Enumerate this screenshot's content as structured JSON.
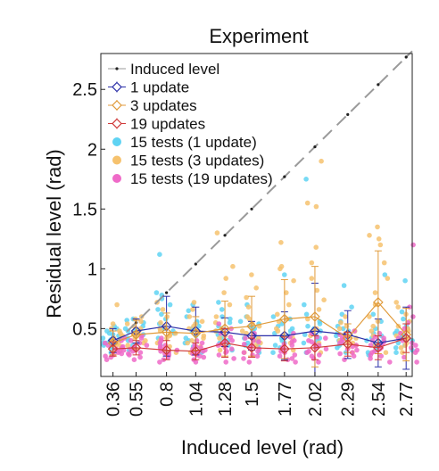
{
  "chart_data": {
    "type": "scatter",
    "title": "Experiment",
    "xlabel": "Induced level (rad)",
    "ylabel": "Residual level (rad)",
    "xlim": [
      0.26,
      2.82
    ],
    "ylim": [
      0.1,
      2.8
    ],
    "grid": false,
    "legend_position": "top-left",
    "x_tick_labels": [
      "0.36",
      "0.55",
      "0.8",
      "1.04",
      "1.28",
      "1.5",
      "1.77",
      "2.02",
      "2.29",
      "2.54",
      "2.77"
    ],
    "y_ticks": [
      0.5,
      1,
      1.5,
      2,
      2.5
    ],
    "y_tick_labels": [
      "0.5",
      "1",
      "1.5",
      "2",
      "2.5"
    ],
    "series": [
      {
        "name": "Induced level",
        "kind": "identity-line",
        "color": "#222222",
        "line_color": "#9a9a9a",
        "x": [
          0.36,
          0.55,
          0.8,
          1.04,
          1.28,
          1.5,
          1.77,
          2.02,
          2.29,
          2.54,
          2.77
        ],
        "y": [
          0.36,
          0.55,
          0.8,
          1.04,
          1.28,
          1.5,
          1.77,
          2.02,
          2.29,
          2.54,
          2.77
        ]
      },
      {
        "name": "1 update",
        "kind": "mean-errorbar",
        "color": "#2b2fa8",
        "x": [
          0.36,
          0.55,
          0.8,
          1.04,
          1.28,
          1.5,
          1.77,
          2.02,
          2.29,
          2.54,
          2.77
        ],
        "y": [
          0.4,
          0.48,
          0.52,
          0.48,
          0.47,
          0.44,
          0.44,
          0.48,
          0.45,
          0.38,
          0.42
        ],
        "err": [
          0.1,
          0.1,
          0.25,
          0.2,
          0.12,
          0.12,
          0.2,
          0.4,
          0.2,
          0.2,
          0.26
        ]
      },
      {
        "name": "3 updates",
        "kind": "mean-errorbar",
        "color": "#e09a3a",
        "x": [
          0.36,
          0.55,
          0.8,
          1.04,
          1.28,
          1.5,
          1.77,
          2.02,
          2.29,
          2.54,
          2.77
        ],
        "y": [
          0.38,
          0.45,
          0.47,
          0.46,
          0.5,
          0.52,
          0.58,
          0.6,
          0.42,
          0.72,
          0.45
        ],
        "err": [
          0.1,
          0.12,
          0.16,
          0.14,
          0.23,
          0.25,
          0.33,
          0.42,
          0.12,
          0.43,
          0.22
        ]
      },
      {
        "name": "19 updates",
        "kind": "mean-errorbar",
        "color": "#d03a3a",
        "x": [
          0.36,
          0.55,
          0.8,
          1.04,
          1.28,
          1.5,
          1.77,
          2.02,
          2.29,
          2.54,
          2.77
        ],
        "y": [
          0.33,
          0.34,
          0.32,
          0.31,
          0.38,
          0.34,
          0.33,
          0.34,
          0.37,
          0.34,
          0.42
        ],
        "err": [
          0.06,
          0.06,
          0.08,
          0.07,
          0.12,
          0.08,
          0.1,
          0.1,
          0.1,
          0.1,
          0.12
        ]
      },
      {
        "name": "15 tests (1 update)",
        "kind": "jitter-points",
        "color": "#5fd3f3",
        "x": [
          0.36,
          0.55,
          0.8,
          1.04,
          1.28,
          1.5,
          1.77,
          2.02,
          2.29,
          2.54,
          2.77
        ],
        "y": [
          [
            0.3,
            0.33,
            0.36,
            0.38,
            0.4,
            0.41,
            0.42,
            0.44,
            0.45,
            0.46,
            0.48,
            0.5,
            0.52,
            0.38,
            0.35
          ],
          [
            0.32,
            0.38,
            0.42,
            0.44,
            0.46,
            0.48,
            0.5,
            0.52,
            0.55,
            0.57,
            0.58,
            0.45,
            0.4,
            0.36,
            0.49
          ],
          [
            0.3,
            0.36,
            0.42,
            0.46,
            0.5,
            0.54,
            0.58,
            0.62,
            0.66,
            0.7,
            0.75,
            0.78,
            0.8,
            0.48,
            1.12
          ],
          [
            0.3,
            0.35,
            0.4,
            0.44,
            0.48,
            0.52,
            0.56,
            0.6,
            0.65,
            0.7,
            0.42,
            0.38,
            0.5,
            0.46,
            0.55
          ],
          [
            0.32,
            0.38,
            0.42,
            0.46,
            0.5,
            0.55,
            0.6,
            0.66,
            0.72,
            0.45,
            0.4,
            0.48,
            0.52,
            0.36,
            0.58
          ],
          [
            0.3,
            0.35,
            0.4,
            0.44,
            0.48,
            0.52,
            0.56,
            0.6,
            0.7,
            0.42,
            0.38,
            0.46,
            0.5,
            0.36,
            0.54
          ],
          [
            0.3,
            0.34,
            0.38,
            0.42,
            0.46,
            0.5,
            0.54,
            0.58,
            0.95,
            0.4,
            0.36,
            0.44,
            0.48,
            0.52,
            0.6
          ],
          [
            0.3,
            0.35,
            0.4,
            0.44,
            0.48,
            0.52,
            0.56,
            0.62,
            0.7,
            0.45,
            0.38,
            0.5,
            0.42,
            0.54,
            1.75
          ],
          [
            0.3,
            0.34,
            0.38,
            0.42,
            0.46,
            0.5,
            0.56,
            0.62,
            0.68,
            0.4,
            0.36,
            0.44,
            0.48,
            0.52,
            0.86
          ],
          [
            0.28,
            0.32,
            0.36,
            0.4,
            0.44,
            0.5,
            0.56,
            0.62,
            0.95,
            0.38,
            0.34,
            0.42,
            0.46,
            0.3,
            0.4
          ],
          [
            0.3,
            0.34,
            0.38,
            0.42,
            0.46,
            0.52,
            0.58,
            0.64,
            0.9,
            0.4,
            0.36,
            0.44,
            0.48,
            0.32,
            0.5
          ]
        ]
      },
      {
        "name": "15 tests (3 updates)",
        "kind": "jitter-points",
        "color": "#f6c26e",
        "x": [
          0.36,
          0.55,
          0.8,
          1.04,
          1.28,
          1.5,
          1.77,
          2.02,
          2.29,
          2.54,
          2.77
        ],
        "y": [
          [
            0.3,
            0.33,
            0.36,
            0.4,
            0.43,
            0.46,
            0.5,
            0.54,
            0.7,
            0.38,
            0.35,
            0.42,
            0.44,
            0.32,
            0.48
          ],
          [
            0.32,
            0.36,
            0.4,
            0.44,
            0.48,
            0.52,
            0.56,
            0.6,
            0.45,
            0.42,
            0.38,
            0.5,
            0.54,
            0.46,
            0.58
          ],
          [
            0.3,
            0.35,
            0.4,
            0.45,
            0.5,
            0.55,
            0.6,
            0.66,
            0.72,
            0.46,
            0.42,
            0.38,
            0.52,
            0.48,
            0.44
          ],
          [
            0.3,
            0.35,
            0.4,
            0.44,
            0.48,
            0.52,
            0.56,
            0.6,
            0.66,
            0.72,
            0.42,
            0.46,
            0.38,
            0.5,
            0.54
          ],
          [
            0.32,
            0.38,
            0.44,
            0.5,
            0.55,
            0.6,
            0.7,
            0.8,
            0.92,
            1.02,
            1.3,
            0.46,
            0.42,
            0.36,
            0.48
          ],
          [
            0.3,
            0.36,
            0.42,
            0.48,
            0.54,
            0.6,
            0.68,
            0.76,
            0.84,
            0.95,
            0.46,
            0.4,
            0.52,
            0.38,
            0.58
          ],
          [
            0.32,
            0.38,
            0.44,
            0.5,
            0.56,
            0.62,
            0.7,
            0.8,
            0.9,
            1.0,
            1.02,
            1.22,
            0.48,
            0.42,
            0.58
          ],
          [
            0.3,
            0.38,
            0.44,
            0.5,
            0.58,
            0.66,
            0.74,
            0.82,
            0.92,
            1.05,
            1.18,
            1.52,
            1.55,
            0.48,
            1.9
          ],
          [
            0.3,
            0.34,
            0.38,
            0.42,
            0.46,
            0.5,
            0.55,
            0.6,
            0.42,
            0.38,
            0.36,
            0.44,
            0.48,
            0.52,
            0.4
          ],
          [
            0.3,
            0.36,
            0.44,
            0.52,
            0.6,
            0.7,
            0.8,
            0.92,
            1.05,
            1.2,
            1.25,
            1.28,
            1.35,
            0.48,
            0.56
          ],
          [
            0.3,
            0.34,
            0.38,
            0.42,
            0.46,
            0.5,
            0.56,
            0.62,
            0.68,
            0.72,
            0.4,
            0.36,
            0.44,
            0.48,
            0.52
          ]
        ]
      },
      {
        "name": "15 tests (19 updates)",
        "kind": "jitter-points",
        "color": "#ef6ac8",
        "x": [
          0.36,
          0.55,
          0.8,
          1.04,
          1.28,
          1.5,
          1.77,
          2.02,
          2.29,
          2.54,
          2.77
        ],
        "y": [
          [
            0.24,
            0.26,
            0.28,
            0.3,
            0.32,
            0.34,
            0.36,
            0.38,
            0.4,
            0.42,
            0.29,
            0.31,
            0.33,
            0.35,
            0.27
          ],
          [
            0.24,
            0.26,
            0.28,
            0.3,
            0.32,
            0.34,
            0.36,
            0.38,
            0.4,
            0.42,
            0.44,
            0.29,
            0.31,
            0.33,
            0.35
          ],
          [
            0.22,
            0.24,
            0.26,
            0.28,
            0.3,
            0.32,
            0.34,
            0.36,
            0.38,
            0.4,
            0.42,
            0.29,
            0.31,
            0.33,
            0.35
          ],
          [
            0.22,
            0.24,
            0.26,
            0.28,
            0.3,
            0.32,
            0.34,
            0.36,
            0.38,
            0.4,
            0.29,
            0.31,
            0.33,
            0.27,
            0.35
          ],
          [
            0.22,
            0.25,
            0.28,
            0.31,
            0.34,
            0.37,
            0.4,
            0.43,
            0.46,
            0.5,
            0.54,
            0.3,
            0.33,
            0.36,
            0.39
          ],
          [
            0.22,
            0.25,
            0.28,
            0.31,
            0.34,
            0.37,
            0.4,
            0.43,
            0.46,
            0.3,
            0.33,
            0.36,
            0.27,
            0.39,
            0.42
          ],
          [
            0.22,
            0.25,
            0.28,
            0.31,
            0.34,
            0.37,
            0.4,
            0.43,
            0.46,
            0.3,
            0.33,
            0.36,
            0.27,
            0.39,
            0.24
          ],
          [
            0.22,
            0.25,
            0.28,
            0.31,
            0.34,
            0.37,
            0.4,
            0.43,
            0.46,
            0.3,
            0.33,
            0.36,
            0.27,
            0.39,
            0.42
          ],
          [
            0.24,
            0.27,
            0.3,
            0.33,
            0.36,
            0.39,
            0.42,
            0.45,
            0.48,
            0.32,
            0.35,
            0.38,
            0.29,
            0.41,
            0.44
          ],
          [
            0.22,
            0.25,
            0.28,
            0.31,
            0.34,
            0.37,
            0.4,
            0.43,
            0.46,
            0.3,
            0.33,
            0.36,
            0.27,
            0.39,
            0.42
          ],
          [
            0.22,
            0.26,
            0.3,
            0.34,
            0.38,
            0.42,
            0.46,
            0.5,
            0.55,
            0.6,
            0.68,
            1.2,
            0.32,
            0.36,
            0.4
          ]
        ]
      }
    ]
  }
}
